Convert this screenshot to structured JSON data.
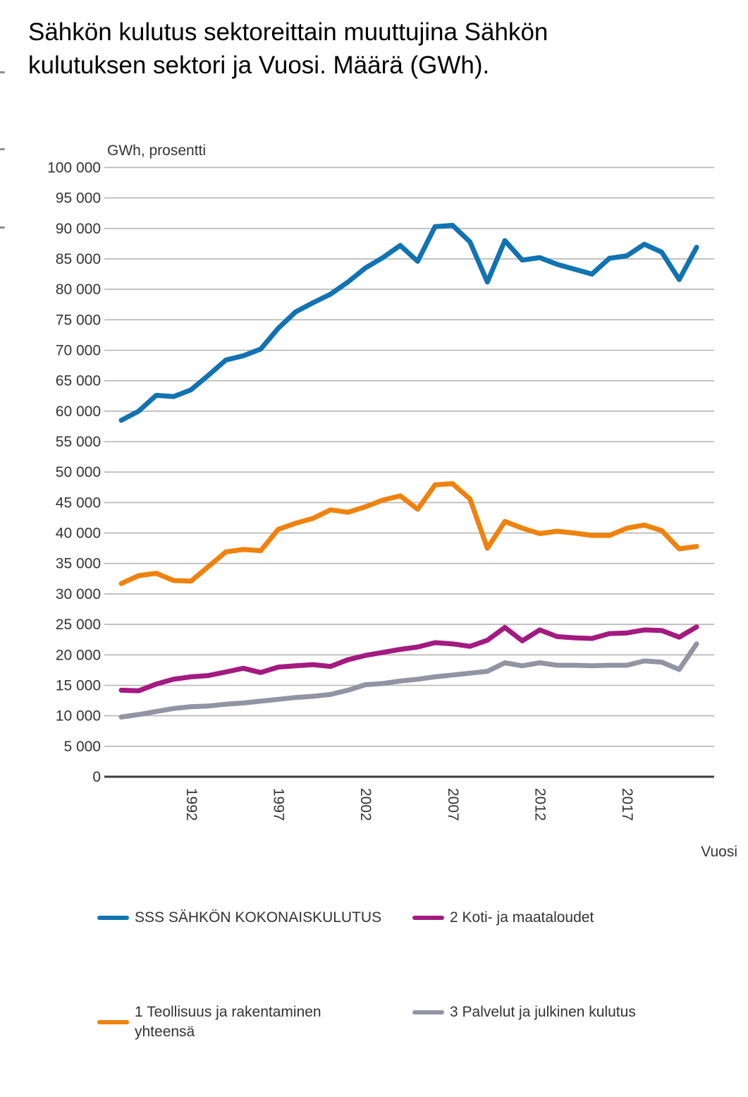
{
  "page": {
    "title": "Sähkön kulutus sektoreittain muuttujina Sähkön kulutuksen sektori ja Vuosi. Määrä (GWh)."
  },
  "chart_data": {
    "type": "line",
    "title": "Sähkön kulutus sektoreittain muuttujina Sähkön kulutuksen sektori ja Vuosi. Määrä (GWh).",
    "unit_label": "GWh, prosentti",
    "x_axis_title": "Vuosi",
    "grid": "horizontal",
    "legend_position": "bottom",
    "axis_color": "#3d3d3d",
    "gridline_color": "#b4b4b4",
    "text_color": "#333333",
    "ylim": [
      0,
      100000
    ],
    "y_step": 5000,
    "y_tick_labels": [
      "0",
      "5 000",
      "10 000",
      "15 000",
      "20 000",
      "25 000",
      "30 000",
      "35 000",
      "40 000",
      "45 000",
      "50 000",
      "55 000",
      "60 000",
      "65 000",
      "70 000",
      "75 000",
      "80 000",
      "85 000",
      "90 000",
      "95 000",
      "100 000"
    ],
    "x": [
      1988,
      1989,
      1990,
      1991,
      1992,
      1993,
      1994,
      1995,
      1996,
      1997,
      1998,
      1999,
      2000,
      2001,
      2002,
      2003,
      2004,
      2005,
      2006,
      2007,
      2008,
      2009,
      2010,
      2011,
      2012,
      2013,
      2014,
      2015,
      2016,
      2017,
      2018,
      2019,
      2020,
      2021
    ],
    "x_tick_years": [
      1992,
      1997,
      2002,
      2007,
      2012,
      2017
    ],
    "x_tick_labels": [
      "1992",
      "1997",
      "2002",
      "2007",
      "2012",
      "2017"
    ],
    "series": [
      {
        "name": "SSS SÄHKÖN KOKONAISKULUTUS",
        "color": "#1173b2",
        "values": [
          58500,
          60000,
          62600,
          62400,
          63500,
          65900,
          68400,
          69100,
          70200,
          73600,
          76300,
          77800,
          79200,
          81200,
          83500,
          85200,
          87200,
          84600,
          90300,
          90500,
          87800,
          81200,
          88000,
          84800,
          85200,
          84100,
          83300,
          82500,
          85100,
          85500,
          87400,
          86100,
          81600,
          86900
        ]
      },
      {
        "name": "2 Koti- ja maataloudet",
        "color": "#a31a80",
        "values": [
          14200,
          14100,
          15200,
          16000,
          16400,
          16600,
          17200,
          17800,
          17100,
          18000,
          18200,
          18400,
          18100,
          19200,
          19900,
          20400,
          20900,
          21300,
          22000,
          21800,
          21400,
          22400,
          24500,
          22300,
          24100,
          23000,
          22800,
          22700,
          23500,
          23600,
          24100,
          24000,
          22900,
          24600
        ]
      },
      {
        "name": "1 Teollisuus ja rakentaminen yhteensä",
        "color": "#ef820d",
        "values": [
          31700,
          33000,
          33400,
          32200,
          32100,
          34500,
          36900,
          37300,
          37100,
          40600,
          41600,
          42400,
          43800,
          43400,
          44300,
          45400,
          46100,
          43900,
          47900,
          48100,
          45600,
          37500,
          41900,
          40800,
          39900,
          40300,
          40000,
          39600,
          39600,
          40800,
          41300,
          40400,
          37400,
          37800
        ]
      },
      {
        "name": "3 Palvelut ja julkinen kulutus",
        "color": "#9094a3",
        "values": [
          9800,
          10200,
          10700,
          11200,
          11500,
          11600,
          11900,
          12100,
          12400,
          12700,
          13000,
          13200,
          13500,
          14200,
          15100,
          15300,
          15700,
          16000,
          16400,
          16700,
          17000,
          17300,
          18700,
          18200,
          18700,
          18300,
          18300,
          18200,
          18300,
          18300,
          19000,
          18800,
          17600,
          21800
        ]
      }
    ]
  }
}
